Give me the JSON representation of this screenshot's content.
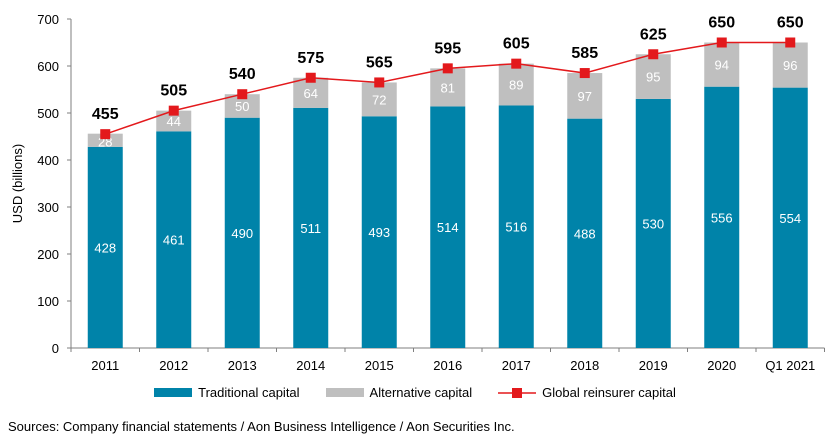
{
  "chart_data": {
    "type": "bar",
    "stacked": true,
    "categories": [
      "2011",
      "2012",
      "2013",
      "2014",
      "2015",
      "2016",
      "2017",
      "2018",
      "2019",
      "2020",
      "Q1 2021"
    ],
    "series": [
      {
        "name": "Traditional capital",
        "type": "bar",
        "color": "#0083A9",
        "values": [
          428,
          461,
          490,
          511,
          493,
          514,
          516,
          488,
          530,
          556,
          554
        ]
      },
      {
        "name": "Alternative capital",
        "type": "bar",
        "color": "#BFBFBF",
        "values": [
          28,
          44,
          50,
          64,
          72,
          81,
          89,
          97,
          95,
          94,
          96
        ]
      },
      {
        "name": "Global reinsurer capital",
        "type": "line",
        "color": "#E3191C",
        "values": [
          455,
          505,
          540,
          575,
          565,
          595,
          605,
          585,
          625,
          650,
          650
        ]
      }
    ],
    "ylabel": "USD (billions)",
    "xlabel": "",
    "ylim": [
      0,
      700
    ],
    "yticks": [
      0,
      100,
      200,
      300,
      400,
      500,
      600,
      700
    ],
    "grid": false,
    "legend_position": "bottom"
  },
  "source": "Sources: Company financial statements / Aon Business Intelligence / Aon Securities Inc."
}
